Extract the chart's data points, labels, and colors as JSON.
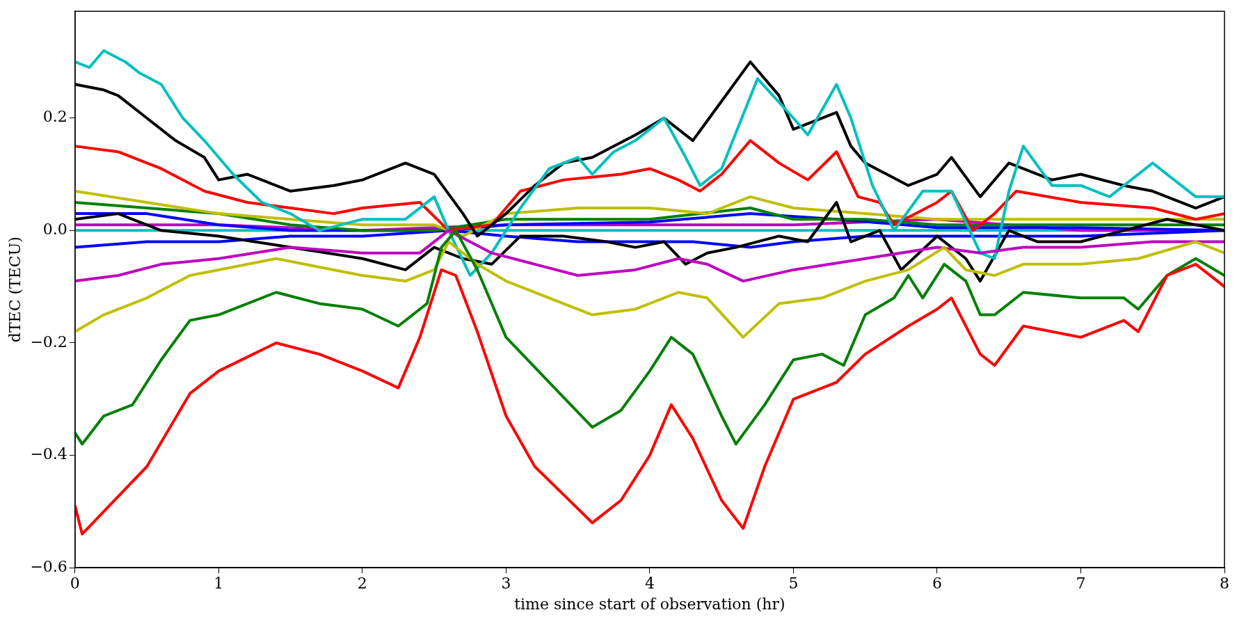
{
  "chart_data": {
    "type": "line",
    "xlabel": "time since start of observation (hr)",
    "ylabel": "dTEC (TECU)",
    "xlim": [
      0,
      8
    ],
    "ylim": [
      -0.6,
      0.39
    ],
    "xticks": [
      0,
      1,
      2,
      3,
      4,
      5,
      6,
      7,
      8
    ],
    "yticks": [
      {
        "value": -0.6,
        "label": "−0.6"
      },
      {
        "value": -0.4,
        "label": "−0.4"
      },
      {
        "value": -0.2,
        "label": "−0.2"
      },
      {
        "value": 0,
        "label": "0.0"
      },
      {
        "value": 0.2,
        "label": "0.2"
      }
    ],
    "grid": false,
    "legend": false,
    "marker": "none",
    "line_style": "solid",
    "series": [
      {
        "color": "#ff0000",
        "x": [
          0,
          0.05,
          0.2,
          0.5,
          0.8,
          1,
          1.4,
          1.7,
          2,
          2.25,
          2.4,
          2.55,
          2.65,
          2.8,
          3,
          3.2,
          3.4,
          3.6,
          3.8,
          4,
          4.15,
          4.3,
          4.5,
          4.65,
          4.8,
          5,
          5.3,
          5.5,
          5.8,
          6,
          6.1,
          6.3,
          6.4,
          6.6,
          6.8,
          7,
          7.3,
          7.4,
          7.6,
          7.8,
          8
        ],
        "values": [
          -0.49,
          -0.54,
          -0.5,
          -0.42,
          -0.29,
          -0.25,
          -0.2,
          -0.22,
          -0.25,
          -0.28,
          -0.19,
          -0.07,
          -0.08,
          -0.18,
          -0.33,
          -0.42,
          -0.47,
          -0.52,
          -0.48,
          -0.4,
          -0.31,
          -0.37,
          -0.48,
          -0.53,
          -0.42,
          -0.3,
          -0.27,
          -0.22,
          -0.17,
          -0.14,
          -0.12,
          -0.22,
          -0.24,
          -0.17,
          -0.18,
          -0.19,
          -0.16,
          -0.18,
          -0.08,
          -0.06,
          -0.1
        ]
      },
      {
        "color": "#008000",
        "x": [
          0,
          0.05,
          0.2,
          0.4,
          0.6,
          0.8,
          1,
          1.4,
          1.7,
          2,
          2.25,
          2.45,
          2.55,
          2.65,
          2.8,
          3,
          3.3,
          3.6,
          3.8,
          4,
          4.15,
          4.3,
          4.5,
          4.6,
          4.8,
          5,
          5.2,
          5.35,
          5.5,
          5.7,
          5.8,
          5.9,
          6.05,
          6.2,
          6.3,
          6.4,
          6.6,
          7,
          7.3,
          7.4,
          7.6,
          7.8,
          8
        ],
        "values": [
          -0.36,
          -0.38,
          -0.33,
          -0.31,
          -0.23,
          -0.16,
          -0.15,
          -0.11,
          -0.13,
          -0.14,
          -0.17,
          -0.13,
          -0.03,
          0,
          -0.07,
          -0.19,
          -0.27,
          -0.35,
          -0.32,
          -0.25,
          -0.19,
          -0.22,
          -0.33,
          -0.38,
          -0.31,
          -0.23,
          -0.22,
          -0.24,
          -0.15,
          -0.12,
          -0.08,
          -0.12,
          -0.06,
          -0.09,
          -0.15,
          -0.15,
          -0.11,
          -0.12,
          -0.12,
          -0.14,
          -0.08,
          -0.05,
          -0.08
        ]
      },
      {
        "color": "#bfbf00",
        "x": [
          0,
          0.2,
          0.5,
          0.8,
          1,
          1.4,
          1.8,
          2,
          2.3,
          2.5,
          2.6,
          2.8,
          3,
          3.3,
          3.6,
          3.9,
          4.2,
          4.4,
          4.65,
          4.9,
          5.2,
          5.5,
          5.8,
          6.05,
          6.2,
          6.4,
          6.6,
          7,
          7.4,
          7.8,
          8
        ],
        "values": [
          -0.18,
          -0.15,
          -0.12,
          -0.08,
          -0.07,
          -0.05,
          -0.07,
          -0.08,
          -0.09,
          -0.07,
          -0.02,
          -0.06,
          -0.09,
          -0.12,
          -0.15,
          -0.14,
          -0.11,
          -0.12,
          -0.19,
          -0.13,
          -0.12,
          -0.09,
          -0.07,
          -0.03,
          -0.07,
          -0.08,
          -0.06,
          -0.06,
          -0.05,
          -0.02,
          -0.04
        ]
      },
      {
        "color": "#bf00bf",
        "x": [
          0,
          0.3,
          0.6,
          1,
          1.5,
          2,
          2.4,
          2.6,
          2.9,
          3.2,
          3.5,
          3.9,
          4.2,
          4.4,
          4.65,
          5,
          5.5,
          6,
          6.3,
          6.6,
          7,
          7.5,
          8
        ],
        "values": [
          -0.09,
          -0.08,
          -0.06,
          -0.05,
          -0.03,
          -0.04,
          -0.04,
          0,
          -0.04,
          -0.06,
          -0.08,
          -0.07,
          -0.05,
          -0.06,
          -0.09,
          -0.07,
          -0.05,
          -0.03,
          -0.04,
          -0.03,
          -0.03,
          -0.02,
          -0.02
        ]
      },
      {
        "color": "#00bfbf",
        "x": [
          0,
          0.1,
          0.2,
          0.35,
          0.45,
          0.6,
          0.75,
          0.9,
          1.1,
          1.3,
          1.5,
          1.7,
          2,
          2.3,
          2.5,
          2.6,
          2.75,
          2.9,
          3.1,
          3.3,
          3.5,
          3.6,
          3.75,
          3.9,
          4.1,
          4.25,
          4.35,
          4.5,
          4.75,
          5,
          5.1,
          5.3,
          5.4,
          5.55,
          5.7,
          5.9,
          6.1,
          6.3,
          6.4,
          6.5,
          6.6,
          6.8,
          7,
          7.2,
          7.5,
          7.8,
          8
        ],
        "values": [
          0.3,
          0.29,
          0.32,
          0.3,
          0.28,
          0.26,
          0.2,
          0.16,
          0.1,
          0.05,
          0.03,
          0,
          0.02,
          0.02,
          0.06,
          0,
          -0.08,
          -0.04,
          0.04,
          0.11,
          0.13,
          0.1,
          0.14,
          0.16,
          0.2,
          0.13,
          0.08,
          0.11,
          0.27,
          0.2,
          0.17,
          0.26,
          0.2,
          0.08,
          0,
          0.07,
          0.07,
          -0.04,
          -0.05,
          0.07,
          0.15,
          0.08,
          0.08,
          0.06,
          0.12,
          0.06,
          0.06
        ]
      },
      {
        "color": "#000000",
        "x": [
          0,
          0.2,
          0.3,
          0.5,
          0.7,
          0.9,
          1,
          1.2,
          1.5,
          1.8,
          2,
          2.3,
          2.5,
          2.7,
          2.8,
          3,
          3.2,
          3.4,
          3.6,
          3.9,
          4.1,
          4.3,
          4.5,
          4.7,
          4.9,
          5,
          5.3,
          5.4,
          5.5,
          5.8,
          6,
          6.1,
          6.3,
          6.5,
          6.8,
          7,
          7.3,
          7.5,
          7.8,
          8
        ],
        "values": [
          0.26,
          0.25,
          0.24,
          0.2,
          0.16,
          0.13,
          0.09,
          0.1,
          0.07,
          0.08,
          0.09,
          0.12,
          0.1,
          0.03,
          -0.01,
          0.03,
          0.08,
          0.12,
          0.13,
          0.17,
          0.2,
          0.16,
          0.23,
          0.3,
          0.24,
          0.18,
          0.21,
          0.15,
          0.12,
          0.08,
          0.1,
          0.13,
          0.06,
          0.12,
          0.09,
          0.1,
          0.08,
          0.07,
          0.04,
          0.06
        ]
      },
      {
        "color": "#ff0000",
        "x": [
          0,
          0.3,
          0.6,
          0.9,
          1.2,
          1.5,
          1.8,
          2,
          2.4,
          2.6,
          2.9,
          3.1,
          3.4,
          3.8,
          4,
          4.2,
          4.35,
          4.5,
          4.7,
          4.9,
          5.1,
          5.3,
          5.45,
          5.6,
          5.7,
          6,
          6.1,
          6.25,
          6.4,
          6.55,
          7,
          7.5,
          7.8,
          8
        ],
        "values": [
          0.15,
          0.14,
          0.11,
          0.07,
          0.05,
          0.04,
          0.03,
          0.04,
          0.05,
          0,
          0.01,
          0.07,
          0.09,
          0.1,
          0.11,
          0.09,
          0.07,
          0.1,
          0.16,
          0.12,
          0.09,
          0.14,
          0.06,
          0.05,
          0.01,
          0.05,
          0.07,
          0,
          0.03,
          0.07,
          0.05,
          0.04,
          0.02,
          0.03
        ]
      },
      {
        "color": "#000000",
        "x": [
          0,
          0.3,
          0.6,
          1,
          1.5,
          2,
          2.3,
          2.5,
          2.7,
          2.9,
          3.1,
          3.4,
          3.7,
          3.9,
          4.1,
          4.25,
          4.4,
          4.6,
          4.9,
          5.1,
          5.3,
          5.4,
          5.6,
          5.75,
          6,
          6.2,
          6.3,
          6.5,
          6.7,
          7,
          7.3,
          7.6,
          8
        ],
        "values": [
          0.02,
          0.03,
          0,
          -0.01,
          -0.03,
          -0.05,
          -0.07,
          -0.03,
          -0.05,
          -0.06,
          -0.01,
          -0.01,
          -0.02,
          -0.03,
          -0.02,
          -0.06,
          -0.04,
          -0.03,
          -0.01,
          -0.02,
          0.05,
          -0.02,
          0,
          -0.07,
          -0.01,
          -0.05,
          -0.09,
          0,
          -0.02,
          -0.02,
          0,
          0.02,
          0
        ]
      },
      {
        "color": "#bfbf00",
        "x": [
          0,
          0.5,
          1,
          1.5,
          2,
          2.5,
          2.7,
          3,
          3.5,
          4,
          4.4,
          4.7,
          5,
          5.5,
          6,
          6.5,
          7,
          8
        ],
        "values": [
          0.07,
          0.05,
          0.03,
          0.02,
          0.01,
          0.01,
          -0.01,
          0.03,
          0.04,
          0.04,
          0.03,
          0.06,
          0.04,
          0.03,
          0.02,
          0.02,
          0.02,
          0.02
        ]
      },
      {
        "color": "#008000",
        "x": [
          0,
          0.5,
          1,
          1.5,
          2,
          2.5,
          3,
          3.5,
          4,
          4.7,
          5,
          5.5,
          6,
          7,
          8
        ],
        "values": [
          0.05,
          0.04,
          0.03,
          0.01,
          0,
          0,
          0.02,
          0.02,
          0.02,
          0.04,
          0.02,
          0.02,
          0.01,
          0.01,
          0.01
        ]
      },
      {
        "color": "#0000ff",
        "x": [
          0,
          0.5,
          1,
          1.5,
          2,
          2.6,
          3,
          4,
          4.7,
          5.3,
          6,
          7,
          8
        ],
        "values": [
          0.03,
          0.03,
          0.01,
          0,
          0,
          0,
          0.01,
          0.015,
          0.03,
          0.02,
          0.005,
          0.005,
          0
        ]
      },
      {
        "color": "#0000ff",
        "x": [
          0,
          0.5,
          1,
          1.5,
          2,
          2.6,
          3,
          3.5,
          4,
          4.3,
          4.7,
          5,
          5.5,
          6,
          7,
          8
        ],
        "values": [
          -0.03,
          -0.02,
          -0.02,
          -0.01,
          -0.01,
          0,
          -0.01,
          -0.02,
          -0.02,
          -0.02,
          -0.03,
          -0.02,
          -0.01,
          -0.01,
          -0.01,
          0
        ]
      },
      {
        "color": "#bf00bf",
        "x": [
          0,
          1,
          2,
          3,
          4,
          5,
          6,
          7,
          8
        ],
        "values": [
          0.01,
          0.01,
          0,
          0.01,
          0.01,
          0.01,
          0.02,
          0,
          0
        ]
      },
      {
        "color": "#00bfbf",
        "x": [
          0,
          2,
          4,
          6,
          8
        ],
        "values": [
          0,
          0,
          0,
          0,
          0
        ]
      }
    ]
  }
}
